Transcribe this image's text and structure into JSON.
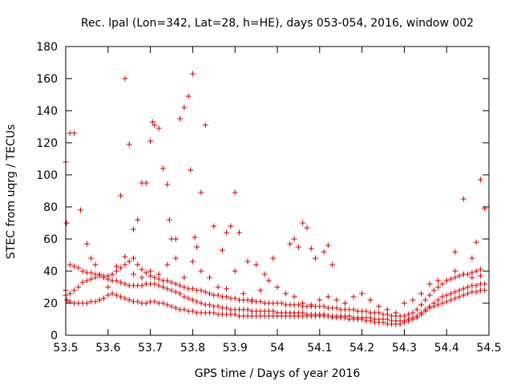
{
  "chart_data": {
    "type": "scatter",
    "title": "Rec. lpal (Lon=342, Lat=28, h=HE), days 053-054, 2016, window 002",
    "xlabel": "GPS time / Days of year 2016",
    "ylabel": "STEC from uqrg / TECUs",
    "xlim": [
      53.5,
      54.5
    ],
    "ylim": [
      0,
      180
    ],
    "x_ticks": [
      "53.5",
      "53.6",
      "53.7",
      "53.8",
      "53.9",
      "54",
      "54.1",
      "54.2",
      "54.3",
      "54.4",
      "54.5"
    ],
    "y_ticks": [
      "0",
      "20",
      "40",
      "60",
      "80",
      "100",
      "120",
      "140",
      "160",
      "180"
    ],
    "grid": false,
    "legend": "none",
    "marker": "plus",
    "color": "#cc0000",
    "series": [
      {
        "x": [
          53.5,
          53.503,
          53.51,
          53.52,
          53.53,
          53.54,
          53.55,
          53.56,
          53.57,
          53.58,
          53.59,
          53.6,
          53.61,
          53.62,
          53.63,
          53.64,
          53.65,
          53.66,
          53.67,
          53.68,
          53.69,
          53.7,
          53.71,
          53.72,
          53.73,
          53.74,
          53.75,
          53.76,
          53.77,
          53.78,
          53.79,
          53.8,
          53.81,
          53.82,
          53.83,
          53.84,
          53.85,
          53.86,
          53.87,
          53.88,
          53.89,
          53.9,
          53.91,
          53.92,
          53.93,
          53.94,
          53.95,
          53.96,
          53.97,
          53.98,
          53.99,
          54.0,
          54.01,
          54.02,
          54.03,
          54.04,
          54.05,
          54.06,
          54.07,
          54.08,
          54.09,
          54.1,
          54.11,
          54.12,
          54.13,
          54.14,
          54.15,
          54.16,
          54.17,
          54.18,
          54.19,
          54.2,
          54.21,
          54.22,
          54.23,
          54.24,
          54.25,
          54.26,
          54.27,
          54.28,
          54.29,
          54.3,
          54.31,
          54.32,
          54.33,
          54.34,
          54.35,
          54.36,
          54.37,
          54.38,
          54.39,
          54.4,
          54.41,
          54.42,
          54.43,
          54.44,
          54.45,
          54.46,
          54.47,
          54.48,
          54.49
        ],
        "y": [
          28,
          22,
          21,
          20,
          20,
          20,
          20,
          21,
          21,
          22,
          23,
          25,
          26,
          25,
          24,
          23,
          22,
          21,
          21,
          20,
          20,
          21,
          21,
          20,
          20,
          19,
          18,
          17,
          16,
          16,
          15,
          15,
          14,
          14,
          14,
          14,
          14,
          13,
          13,
          13,
          13,
          13,
          12,
          12,
          12,
          12,
          12,
          12,
          12,
          12,
          12,
          12,
          12,
          12,
          12,
          12,
          12,
          12,
          12,
          12,
          12,
          12,
          12,
          12,
          11,
          11,
          11,
          11,
          10,
          10,
          10,
          10,
          9,
          9,
          8,
          8,
          8,
          7,
          7,
          7,
          7,
          8,
          9,
          10,
          11,
          13,
          15,
          17,
          18,
          19,
          20,
          21,
          22,
          23,
          24,
          25,
          26,
          27,
          27,
          28,
          28
        ]
      },
      {
        "x": [
          53.5,
          53.51,
          53.52,
          53.53,
          53.54,
          53.55,
          53.56,
          53.57,
          53.58,
          53.59,
          53.6,
          53.61,
          53.62,
          53.63,
          53.64,
          53.65,
          53.66,
          53.67,
          53.68,
          53.69,
          53.7,
          53.71,
          53.72,
          53.73,
          53.74,
          53.75,
          53.76,
          53.77,
          53.78,
          53.79,
          53.8,
          53.81,
          53.82,
          53.83,
          53.84,
          53.85,
          53.86,
          53.87,
          53.88,
          53.89,
          53.9,
          53.91,
          53.92,
          53.93,
          53.94,
          53.95,
          53.96,
          53.97,
          53.98,
          53.99,
          54.0,
          54.01,
          54.02,
          54.03,
          54.04,
          54.05,
          54.06,
          54.07,
          54.08,
          54.09,
          54.1,
          54.11,
          54.12,
          54.13,
          54.14,
          54.15,
          54.16,
          54.17,
          54.18,
          54.19,
          54.2,
          54.21,
          54.22,
          54.23,
          54.24,
          54.25,
          54.26,
          54.27,
          54.28,
          54.29,
          54.3,
          54.31,
          54.32,
          54.33,
          54.34,
          54.35,
          54.36,
          54.37,
          54.38,
          54.39,
          54.4,
          54.41,
          54.42,
          54.43,
          54.44,
          54.45,
          54.46,
          54.47,
          54.48,
          54.49
        ],
        "y": [
          25,
          26,
          28,
          30,
          33,
          34,
          35,
          36,
          37,
          36,
          35,
          34,
          34,
          33,
          32,
          31,
          31,
          31,
          31,
          32,
          32,
          32,
          31,
          30,
          29,
          28,
          27,
          26,
          24,
          23,
          22,
          21,
          20,
          19,
          19,
          18,
          18,
          17,
          17,
          16,
          16,
          16,
          16,
          16,
          15,
          15,
          15,
          15,
          15,
          15,
          14,
          14,
          14,
          14,
          14,
          14,
          14,
          13,
          13,
          13,
          13,
          13,
          12,
          12,
          12,
          12,
          12,
          12,
          11,
          11,
          11,
          11,
          11,
          10,
          10,
          10,
          10,
          9,
          9,
          9,
          9,
          10,
          11,
          12,
          14,
          16,
          18,
          20,
          22,
          24,
          25,
          26,
          27,
          28,
          29,
          30,
          31,
          31,
          32,
          32
        ]
      },
      {
        "x": [
          53.51,
          53.52,
          53.53,
          53.54,
          53.55,
          53.56,
          53.57,
          53.58,
          53.59,
          53.6,
          53.61,
          53.62,
          53.63,
          53.64,
          53.65,
          53.66,
          53.67,
          53.68,
          53.69,
          53.7,
          53.71,
          53.72,
          53.73,
          53.74,
          53.75,
          53.76,
          53.77,
          53.78,
          53.79,
          53.8,
          53.81,
          53.82,
          53.83,
          53.84,
          53.85,
          53.86,
          53.87,
          53.88,
          53.89,
          53.9,
          53.91,
          53.92,
          53.93,
          53.94,
          53.95,
          53.96,
          53.97,
          53.98,
          53.99,
          54.0,
          54.01,
          54.02,
          54.03,
          54.04,
          54.05,
          54.06,
          54.07,
          54.08,
          54.09,
          54.1,
          54.11,
          54.12,
          54.13,
          54.14,
          54.15,
          54.16,
          54.17,
          54.18,
          54.19,
          54.2,
          54.21,
          54.22,
          54.23,
          54.24,
          54.25,
          54.26,
          54.27,
          54.28,
          54.29,
          54.3,
          54.31,
          54.32,
          54.33,
          54.34,
          54.35,
          54.36,
          54.37,
          54.38,
          54.39,
          54.4,
          54.41,
          54.42,
          54.43,
          54.44,
          54.45,
          54.46,
          54.47,
          54.48
        ],
        "y": [
          44,
          43,
          42,
          40,
          39,
          39,
          38,
          38,
          37,
          37,
          38,
          40,
          42,
          44,
          46,
          48,
          44,
          41,
          39,
          37,
          36,
          35,
          34,
          34,
          33,
          32,
          31,
          30,
          29,
          29,
          28,
          28,
          27,
          26,
          25,
          25,
          24,
          24,
          23,
          23,
          22,
          22,
          22,
          21,
          21,
          21,
          20,
          20,
          20,
          20,
          20,
          19,
          19,
          19,
          19,
          18,
          18,
          18,
          18,
          18,
          18,
          17,
          17,
          17,
          16,
          16,
          16,
          16,
          15,
          15,
          15,
          14,
          14,
          14,
          13,
          13,
          12,
          12,
          12,
          12,
          13,
          14,
          16,
          19,
          22,
          25,
          28,
          30,
          32,
          34,
          35,
          36,
          37,
          38,
          38,
          39,
          40,
          41
        ]
      },
      {
        "x": [
          53.5,
          53.502,
          53.51,
          53.52,
          53.535,
          53.55,
          53.56,
          53.57,
          53.63,
          53.64,
          53.65,
          53.66,
          53.67,
          53.68,
          53.69,
          53.7,
          53.705,
          53.71,
          53.72,
          53.73,
          53.74,
          53.745,
          53.75,
          53.76,
          53.77,
          53.78,
          53.79,
          53.795,
          53.8,
          53.805,
          53.81,
          53.82,
          53.83,
          53.85,
          53.87,
          53.88,
          53.89,
          53.9,
          53.91,
          53.93,
          53.95,
          53.97,
          53.99,
          54.03,
          54.04,
          54.05,
          54.06,
          54.07,
          54.08,
          54.09,
          54.11,
          54.12,
          54.13,
          54.42,
          54.44,
          54.46,
          54.47,
          54.48,
          54.49
        ],
        "y": [
          108,
          70,
          126,
          126,
          78,
          57,
          48,
          44,
          87,
          160,
          119,
          66,
          72,
          95,
          95,
          121,
          133,
          131,
          129,
          104,
          94,
          72,
          60,
          60,
          135,
          142,
          149,
          103,
          163,
          61,
          55,
          89,
          131,
          68,
          53,
          64,
          68,
          89,
          64,
          46,
          44,
          38,
          48,
          57,
          60,
          55,
          70,
          67,
          54,
          48,
          52,
          56,
          44,
          52,
          85,
          48,
          58,
          97,
          79
        ]
      },
      {
        "x": [
          53.6,
          53.62,
          53.64,
          53.66,
          53.68,
          53.7,
          53.72,
          53.74,
          53.76,
          53.78,
          53.8,
          53.82,
          53.84,
          53.86,
          53.88,
          53.9,
          53.92,
          53.94,
          53.96,
          53.98,
          54.0,
          54.02,
          54.04,
          54.06,
          54.08,
          54.1,
          54.12,
          54.14,
          54.16,
          54.18,
          54.2,
          54.22,
          54.24,
          54.26,
          54.28,
          54.3,
          54.32,
          54.34,
          54.36,
          54.38,
          54.4,
          54.42,
          54.44,
          54.46,
          54.48
        ],
        "y": [
          30,
          43,
          49,
          38,
          36,
          40,
          38,
          44,
          48,
          36,
          46,
          40,
          36,
          30,
          29,
          40,
          26,
          22,
          28,
          34,
          30,
          26,
          24,
          20,
          19,
          22,
          24,
          22,
          20,
          24,
          26,
          22,
          18,
          16,
          14,
          20,
          22,
          26,
          32,
          34,
          34,
          40,
          38,
          36,
          37
        ]
      }
    ]
  }
}
